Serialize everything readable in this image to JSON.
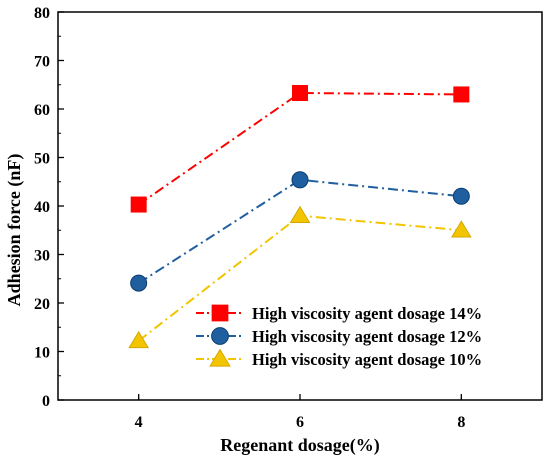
{
  "chart_data": {
    "type": "line",
    "title": "",
    "xlabel": "Regenant dosage(%)",
    "ylabel": "Adhesion force (nF)",
    "x": [
      4,
      6,
      8
    ],
    "xlim": [
      3,
      9
    ],
    "ylim": [
      0,
      80
    ],
    "xticks": [
      4,
      6,
      8
    ],
    "yticks": [
      0,
      10,
      20,
      30,
      40,
      50,
      60,
      70,
      80
    ],
    "grid": false,
    "legend_position": "bottom-right",
    "series": [
      {
        "name": "High viscosity agent dosage 14%",
        "values": [
          40.3,
          63.3,
          63.0
        ],
        "color": "#ff0000",
        "marker": "square",
        "line_style": "dash-dot"
      },
      {
        "name": "High viscosity agent dosage 12%",
        "values": [
          24.1,
          45.4,
          42.0
        ],
        "color": "#1f5fa0",
        "marker": "circle",
        "line_style": "dash-dot"
      },
      {
        "name": "High viscosity agent dosage 10%",
        "values": [
          12.2,
          38.0,
          35.0
        ],
        "color": "#f2c500",
        "marker": "triangle",
        "line_style": "dash-dot"
      }
    ]
  }
}
